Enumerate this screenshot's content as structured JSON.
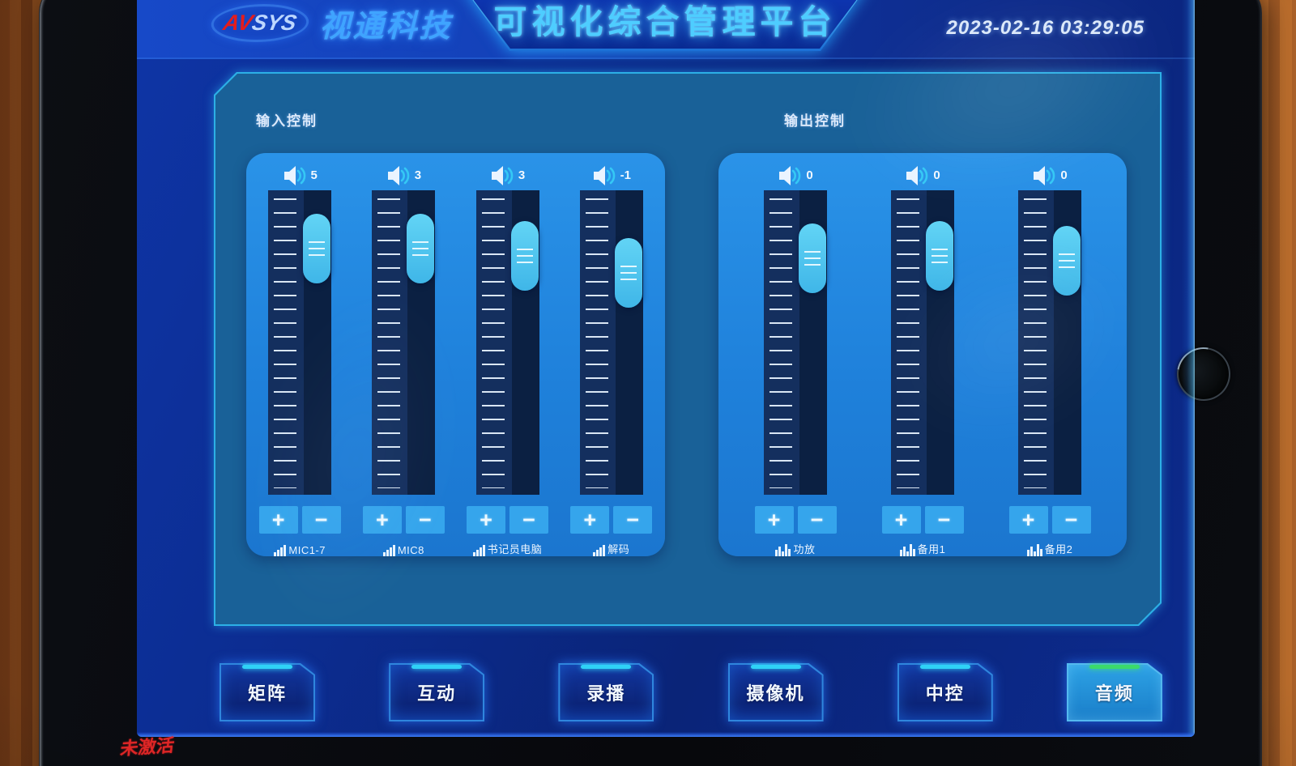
{
  "brand": {
    "logo_av": "AV",
    "logo_sys": "SYS",
    "company": "视通科技"
  },
  "header": {
    "title": "可视化综合管理平台",
    "timestamp": "2023-02-16 03:29:05"
  },
  "mixer": {
    "input": {
      "section_label": "输入控制",
      "channels": [
        {
          "name": "MIC1-7",
          "value": "5",
          "handle_percent": 10
        },
        {
          "name": "MIC8",
          "value": "3",
          "handle_percent": 10
        },
        {
          "name": "书记员电脑",
          "value": "3",
          "handle_percent": 13
        },
        {
          "name": "解码",
          "value": "-1",
          "handle_percent": 20
        }
      ]
    },
    "output": {
      "section_label": "输出控制",
      "channels": [
        {
          "name": "功放",
          "value": "0",
          "handle_percent": 14
        },
        {
          "name": "备用1",
          "value": "0",
          "handle_percent": 13
        },
        {
          "name": "备用2",
          "value": "0",
          "handle_percent": 15
        }
      ]
    }
  },
  "controls": {
    "increase_label": "+",
    "decrease_label": "−"
  },
  "nav": {
    "buttons": [
      {
        "label": "矩阵",
        "active": false
      },
      {
        "label": "互动",
        "active": false
      },
      {
        "label": "录播",
        "active": false
      },
      {
        "label": "摄像机",
        "active": false
      },
      {
        "label": "中控",
        "active": false
      },
      {
        "label": "音频",
        "active": true
      }
    ]
  },
  "watermark": "未激活",
  "icons": {
    "speaker": "speaker-icon",
    "input_channel": "signal-bars-icon",
    "output_channel": "equalizer-icon"
  },
  "colors": {
    "accent_cyan": "#35c8f5",
    "active_green": "#3bda6b",
    "card_blue": "#1f84de",
    "handle_cyan": "#4cc6ef",
    "logo_red": "#e01818"
  }
}
